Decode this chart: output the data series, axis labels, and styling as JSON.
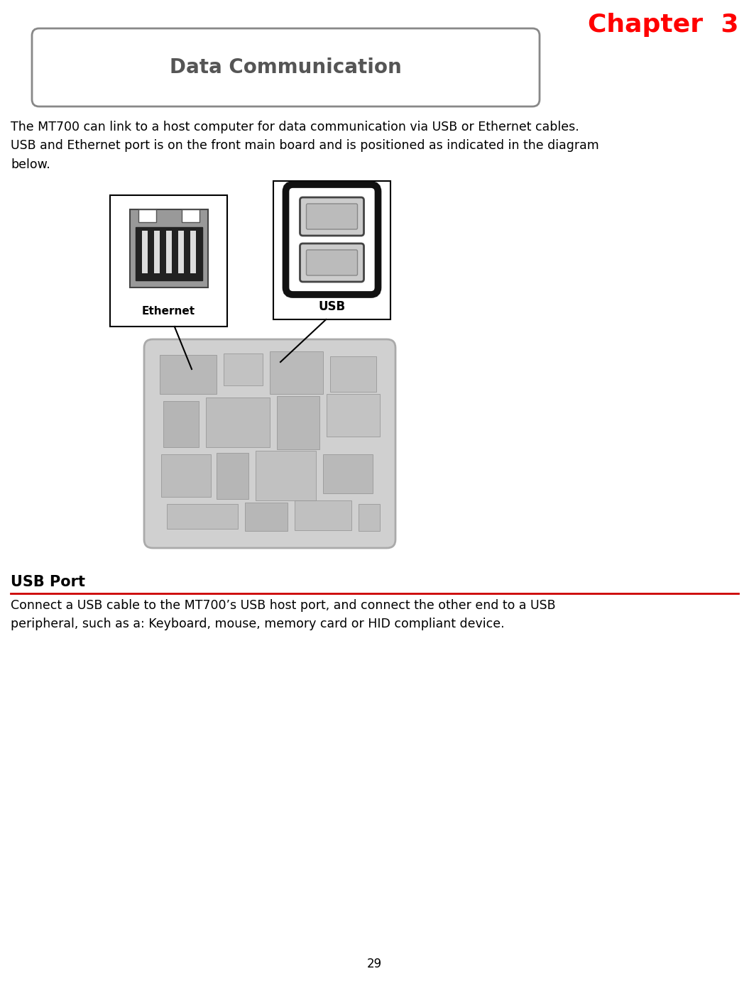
{
  "chapter_text": "Chapter  3",
  "chapter_color": "#ff0000",
  "chapter_fontsize": 26,
  "title_box_text": "Data Communication",
  "title_box_color": "#888888",
  "title_box_bg": "#ffffff",
  "title_fontsize": 20,
  "body_text1": "The MT700 can link to a host computer for data communication via USB or Ethernet cables.\nUSB and Ethernet port is on the front main board and is positioned as indicated in the diagram\nbelow.",
  "body_fontsize": 12.5,
  "section_title": "USB Port",
  "section_title_fontsize": 15,
  "section_line_color": "#cc0000",
  "section_body": "Connect a USB cable to the MT700’s USB host port, and connect the other end to a USB\nperipheral, such as a: Keyboard, mouse, memory card or HID compliant device.",
  "section_body_fontsize": 12.5,
  "label_ethernet": "Ethernet",
  "label_usb": "USB",
  "page_number": "29",
  "bg_color": "#ffffff",
  "text_color": "#000000",
  "gray_text": "#555555"
}
